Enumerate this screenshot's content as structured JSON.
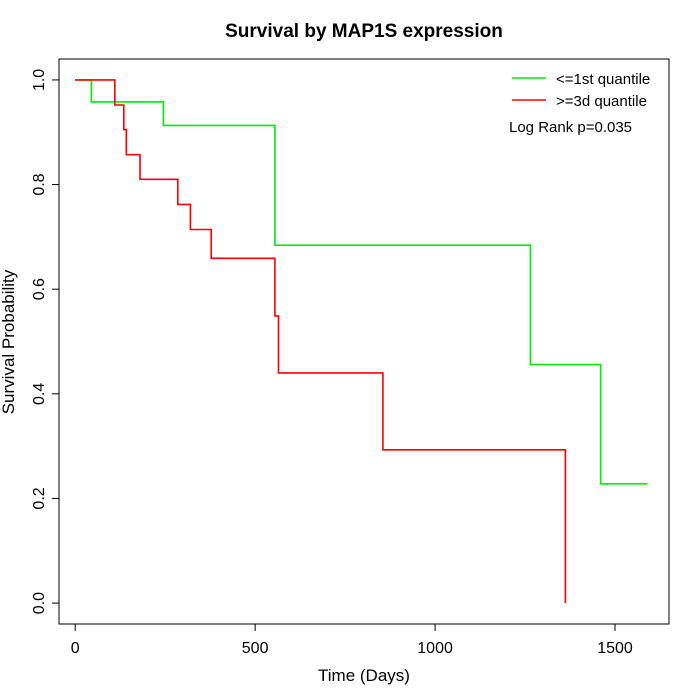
{
  "chart_data": {
    "type": "line",
    "title": "Survival by MAP1S expression",
    "xlabel": "Time (Days)",
    "ylabel": "Survival Probability",
    "xlim": [
      -45,
      1650
    ],
    "ylim": [
      -0.04,
      1.04
    ],
    "x_ticks": [
      0,
      500,
      1000,
      1500
    ],
    "x_tick_labels": [
      "0",
      "500",
      "1000",
      "1500"
    ],
    "y_ticks": [
      0.0,
      0.2,
      0.4,
      0.6,
      0.8,
      1.0
    ],
    "y_tick_labels": [
      "0.0",
      "0.2",
      "0.4",
      "0.6",
      "0.8",
      "1.0"
    ],
    "grid": false,
    "legend_position": "top-right",
    "annotation": "Log Rank p=0.035",
    "series": [
      {
        "name": "<=1st quantile",
        "color": "#00ee00",
        "step": true,
        "x": [
          0,
          45,
          245,
          555,
          1265,
          1460,
          1590
        ],
        "y": [
          1.0,
          0.958,
          0.913,
          0.684,
          0.456,
          0.228,
          0.228
        ]
      },
      {
        "name": ">=3d quantile",
        "color": "#ff0000",
        "step": true,
        "x": [
          0,
          110,
          135,
          142,
          180,
          285,
          320,
          378,
          555,
          565,
          855,
          1360,
          1362
        ],
        "y": [
          1.0,
          0.952,
          0.905,
          0.857,
          0.81,
          0.762,
          0.714,
          0.659,
          0.549,
          0.44,
          0.293,
          0.293,
          0.0
        ]
      }
    ]
  }
}
